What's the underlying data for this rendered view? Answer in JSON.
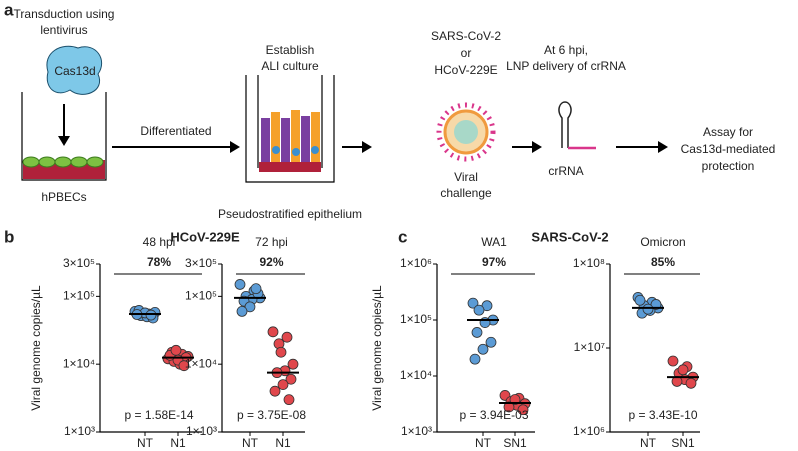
{
  "panel_labels": [
    "a",
    "b",
    "c"
  ],
  "schematic": {
    "transduction": [
      "Transduction using",
      "lentivirus"
    ],
    "cas13d": "Cas13d",
    "cells": "hPBECs",
    "differentiated": "Differentiated",
    "ali": [
      "Establish",
      "ALI culture"
    ],
    "epithelium": "Pseudostratified epithelium",
    "virus": [
      "SARS-CoV-2",
      "or",
      "HCoV-229E"
    ],
    "challenge": [
      "Viral",
      "challenge"
    ],
    "lnp": [
      "At 6 hpi,",
      "LNP delivery of crRNA"
    ],
    "crrna": "crRNA",
    "assay": [
      "Assay for",
      "Cas13d-mediated",
      "protection"
    ]
  },
  "panel_titles": [
    "HCoV-229E",
    "SARS-CoV-2"
  ],
  "chart_data": [
    {
      "type": "strip",
      "title": "48 hpi",
      "ylabel": "Viral genome copies/µL",
      "log_y": true,
      "categories": [
        "NT",
        "N1"
      ],
      "series": [
        {
          "color": "#5b9bd5",
          "values": [
            60000,
            55000,
            52000,
            58000,
            50000,
            62000,
            48000,
            57000,
            54000,
            53000
          ]
        },
        {
          "color": "#e0474c",
          "values": [
            12000,
            14000,
            11000,
            13000,
            10000,
            15000,
            12500,
            11500,
            13500,
            9500,
            16000
          ]
        }
      ],
      "means": [
        55000,
        12500
      ],
      "ylim": [
        1000,
        300000
      ],
      "yticks": [
        {
          "value": 1000,
          "label": "1×10³"
        },
        {
          "value": 10000,
          "label": "1×10⁴"
        },
        {
          "value": 100000,
          "label": "1×10⁵"
        },
        {
          "value": 300000,
          "label": "3×10⁵"
        }
      ],
      "annotation": "78%",
      "p_value": "p = 1.58E-14"
    },
    {
      "type": "strip",
      "title": "72 hpi",
      "log_y": true,
      "categories": [
        "NT",
        "N1"
      ],
      "series": [
        {
          "color": "#5b9bd5",
          "values": [
            150000,
            120000,
            100000,
            95000,
            90000,
            85000,
            110000,
            70000,
            60000,
            130000
          ]
        },
        {
          "color": "#e0474c",
          "values": [
            30000,
            25000,
            20000,
            10000,
            8000,
            7500,
            6000,
            5000,
            4000,
            3000,
            15000
          ]
        }
      ],
      "means": [
        95000,
        7500
      ],
      "ylim": [
        1000,
        300000
      ],
      "yticks": [
        {
          "value": 1000,
          "label": "1×10³"
        },
        {
          "value": 10000,
          "label": "1×10⁴"
        },
        {
          "value": 100000,
          "label": "1×10⁵"
        },
        {
          "value": 300000,
          "label": "3×10⁵"
        }
      ],
      "annotation": "92%",
      "p_value": "p = 3.75E-08"
    },
    {
      "type": "strip",
      "title": "WA1",
      "ylabel": "Viral genome copies/µL",
      "log_y": true,
      "categories": [
        "NT",
        "SN1"
      ],
      "series": [
        {
          "color": "#5b9bd5",
          "values": [
            200000,
            180000,
            150000,
            100000,
            90000,
            60000,
            40000,
            30000,
            20000
          ]
        },
        {
          "color": "#e0474c",
          "values": [
            4500,
            4000,
            3500,
            3200,
            3000,
            2800,
            2500,
            3800
          ]
        }
      ],
      "means": [
        100000,
        3300
      ],
      "ylim": [
        1000,
        1000000
      ],
      "yticks": [
        {
          "value": 1000,
          "label": "1×10³"
        },
        {
          "value": 10000,
          "label": "1×10⁴"
        },
        {
          "value": 100000,
          "label": "1×10⁵"
        },
        {
          "value": 1000000,
          "label": "1×10⁶"
        }
      ],
      "annotation": "97%",
      "p_value": "p = 3.94E-03"
    },
    {
      "type": "strip",
      "title": "Omicron",
      "log_y": true,
      "categories": [
        "NT",
        "SN1"
      ],
      "series": [
        {
          "color": "#5b9bd5",
          "values": [
            40000000,
            35000000,
            32000000,
            30000000,
            28000000,
            26000000,
            33000000,
            29000000,
            37000000
          ]
        },
        {
          "color": "#e0474c",
          "values": [
            7000000,
            6000000,
            5000000,
            4500000,
            4200000,
            4000000,
            3800000,
            5500000
          ]
        }
      ],
      "means": [
        30000000,
        4500000
      ],
      "ylim": [
        1000000,
        100000000
      ],
      "yticks": [
        {
          "value": 1000000,
          "label": "1×10⁶"
        },
        {
          "value": 10000000,
          "label": "1×10⁷"
        },
        {
          "value": 100000000,
          "label": "1×10⁸"
        }
      ],
      "annotation": "85%",
      "p_value": "p = 3.43E-10"
    }
  ]
}
